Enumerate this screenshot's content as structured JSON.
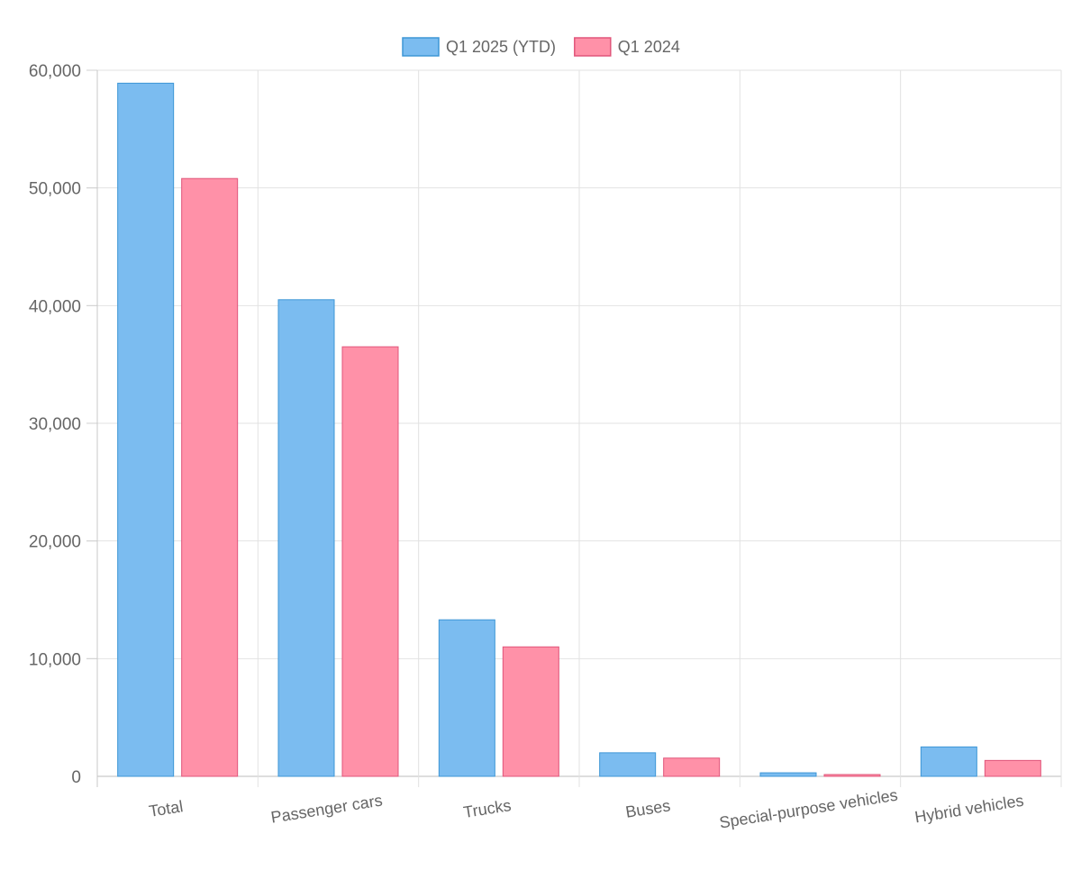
{
  "chart_data": {
    "type": "bar",
    "title": "",
    "xlabel": "",
    "ylabel": "",
    "categories": [
      "Total",
      "Passenger cars",
      "Trucks",
      "Buses",
      "Special-purpose vehicles",
      "Hybrid vehicles"
    ],
    "series": [
      {
        "name": "Q1 2025 (YTD)",
        "values": [
          58900,
          40500,
          13300,
          2000,
          300,
          2500
        ],
        "color": "#7bbcf0",
        "border": "#3d96d6"
      },
      {
        "name": "Q1 2024",
        "values": [
          50800,
          36500,
          11000,
          1550,
          150,
          1350
        ],
        "color": "#ff91a8",
        "border": "#e0557a"
      }
    ],
    "ylim": [
      0,
      60000
    ],
    "yticks": [
      0,
      10000,
      20000,
      30000,
      40000,
      50000,
      60000
    ],
    "ytick_labels": [
      "0",
      "10,000",
      "20,000",
      "30,000",
      "40,000",
      "50,000",
      "60,000"
    ],
    "grid": true,
    "legend_position": "top-center"
  }
}
